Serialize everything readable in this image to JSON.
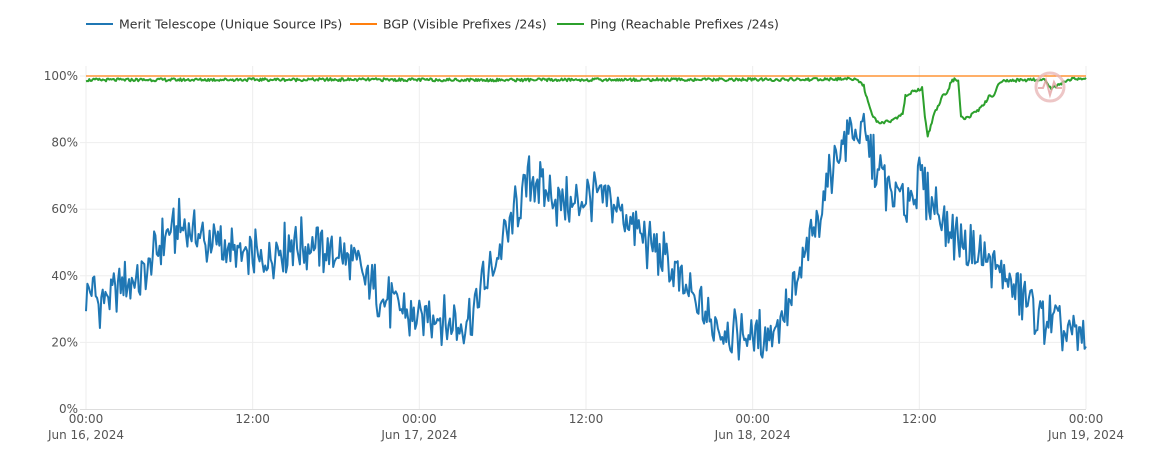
{
  "chart_data": {
    "type": "line",
    "title": "",
    "xlabel": "",
    "ylabel": "",
    "x_range_hours": [
      0,
      72
    ],
    "ylim": [
      0,
      100
    ],
    "y_ticks": [
      {
        "value": 0,
        "label": "0%"
      },
      {
        "value": 20,
        "label": "20%"
      },
      {
        "value": 40,
        "label": "40%"
      },
      {
        "value": 60,
        "label": "60%"
      },
      {
        "value": 80,
        "label": "80%"
      },
      {
        "value": 100,
        "label": "100%"
      }
    ],
    "x_ticks": [
      {
        "hour": 0,
        "time": "00:00",
        "date": "Jun 16, 2024"
      },
      {
        "hour": 12,
        "time": "12:00",
        "date": ""
      },
      {
        "hour": 24,
        "time": "00:00",
        "date": "Jun 17, 2024"
      },
      {
        "hour": 36,
        "time": "12:00",
        "date": ""
      },
      {
        "hour": 48,
        "time": "00:00",
        "date": "Jun 18, 2024"
      },
      {
        "hour": 60,
        "time": "12:00",
        "date": ""
      },
      {
        "hour": 72,
        "time": "00:00",
        "date": "Jun 19, 2024"
      }
    ],
    "legend_position": "top-left",
    "series": [
      {
        "name": "Merit Telescope (Unique Source IPs)",
        "color": "#1f77b4",
        "points": [
          [
            0,
            36
          ],
          [
            1,
            33
          ],
          [
            2,
            34
          ],
          [
            3,
            37
          ],
          [
            4,
            40
          ],
          [
            5,
            47
          ],
          [
            6,
            53
          ],
          [
            7,
            55
          ],
          [
            8,
            52
          ],
          [
            9,
            50
          ],
          [
            10,
            48
          ],
          [
            11,
            46
          ],
          [
            12,
            45
          ],
          [
            13,
            46
          ],
          [
            14,
            48
          ],
          [
            15,
            50
          ],
          [
            16,
            49
          ],
          [
            17,
            48
          ],
          [
            18,
            47
          ],
          [
            19,
            45
          ],
          [
            20,
            40
          ],
          [
            21,
            35
          ],
          [
            22,
            31
          ],
          [
            23,
            29
          ],
          [
            24,
            27
          ],
          [
            25,
            28
          ],
          [
            26,
            27
          ],
          [
            27,
            25
          ],
          [
            28,
            31
          ],
          [
            29,
            40
          ],
          [
            30,
            49
          ],
          [
            31,
            60
          ],
          [
            32,
            69
          ],
          [
            33,
            66
          ],
          [
            34,
            62
          ],
          [
            35,
            61
          ],
          [
            36,
            64
          ],
          [
            37,
            65
          ],
          [
            38,
            62
          ],
          [
            39,
            57
          ],
          [
            40,
            52
          ],
          [
            41,
            48
          ],
          [
            42,
            43
          ],
          [
            43,
            36
          ],
          [
            44,
            31
          ],
          [
            45,
            27
          ],
          [
            46,
            25
          ],
          [
            47,
            23
          ],
          [
            48,
            22
          ],
          [
            49,
            23
          ],
          [
            50,
            27
          ],
          [
            51,
            35
          ],
          [
            52,
            48
          ],
          [
            53,
            63
          ],
          [
            54,
            75
          ],
          [
            55,
            84
          ],
          [
            56,
            82
          ],
          [
            57,
            72
          ],
          [
            58,
            64
          ],
          [
            59,
            62
          ],
          [
            60,
            68
          ],
          [
            61,
            62
          ],
          [
            62,
            55
          ],
          [
            63,
            51
          ],
          [
            64,
            47
          ],
          [
            65,
            44
          ],
          [
            66,
            40
          ],
          [
            67,
            36
          ],
          [
            68,
            31
          ],
          [
            69,
            27
          ],
          [
            70,
            25
          ],
          [
            71,
            22
          ],
          [
            72,
            20
          ]
        ]
      },
      {
        "name": "BGP (Visible Prefixes /24s)",
        "color": "#ff7f0e",
        "points": [
          [
            0,
            100
          ],
          [
            72,
            100
          ]
        ]
      },
      {
        "name": "Ping (Reachable Prefixes /24s)",
        "color": "#2ca02c",
        "points": [
          [
            0,
            98.8
          ],
          [
            10,
            98.9
          ],
          [
            20,
            98.9
          ],
          [
            30,
            98.8
          ],
          [
            40,
            98.9
          ],
          [
            50,
            98.9
          ],
          [
            54,
            99.0
          ],
          [
            55,
            99.2
          ],
          [
            55.5,
            99.1
          ],
          [
            56,
            97
          ],
          [
            56.3,
            92
          ],
          [
            56.6,
            88
          ],
          [
            57,
            86
          ],
          [
            58,
            86.5
          ],
          [
            58.8,
            88.5
          ],
          [
            59,
            94
          ],
          [
            59.6,
            95.5
          ],
          [
            60,
            95.8
          ],
          [
            60.1,
            96
          ],
          [
            60.2,
            97
          ],
          [
            60.4,
            88
          ],
          [
            60.6,
            82
          ],
          [
            60.9,
            86
          ],
          [
            61,
            88
          ],
          [
            61.5,
            92
          ],
          [
            61.7,
            94.5
          ],
          [
            62,
            94.8
          ],
          [
            62.3,
            98.5
          ],
          [
            62.6,
            99
          ],
          [
            62.8,
            99
          ],
          [
            63,
            87.5
          ],
          [
            63.3,
            87
          ],
          [
            64,
            89
          ],
          [
            64.6,
            91
          ],
          [
            64.9,
            93
          ],
          [
            65,
            94
          ],
          [
            65.4,
            94.3
          ],
          [
            65.6,
            97
          ],
          [
            66,
            98.5
          ],
          [
            68,
            98.9
          ],
          [
            69,
            99
          ],
          [
            69.5,
            96
          ],
          [
            70,
            97.5
          ],
          [
            71,
            99
          ],
          [
            72,
            99
          ]
        ]
      }
    ]
  }
}
